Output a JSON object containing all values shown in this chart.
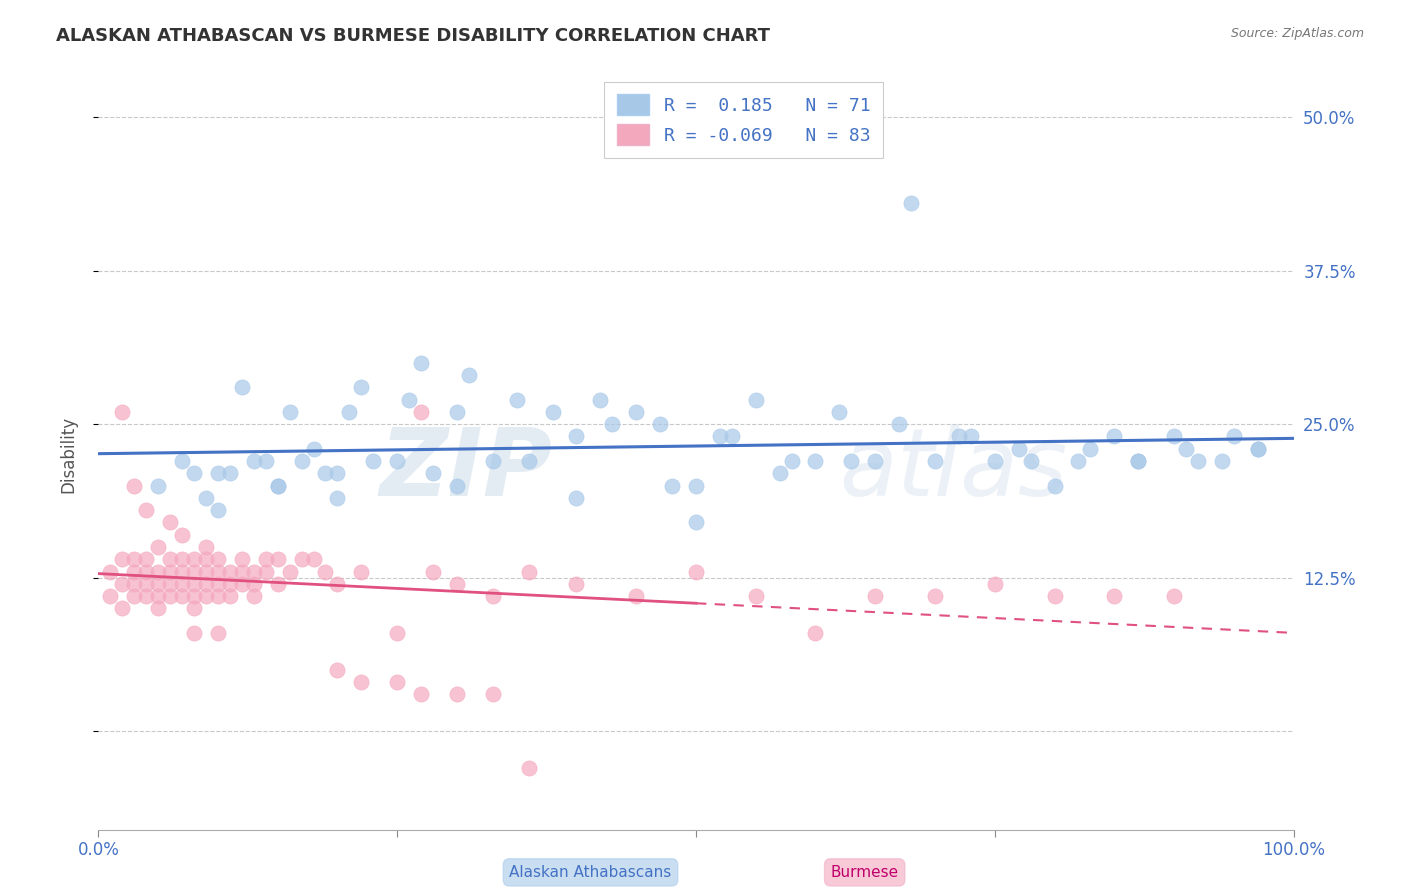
{
  "title": "ALASKAN ATHABASCAN VS BURMESE DISABILITY CORRELATION CHART",
  "source": "Source: ZipAtlas.com",
  "ylabel": "Disability",
  "xlim": [
    0.0,
    100.0
  ],
  "ylim": [
    -8.0,
    53.0
  ],
  "yticks": [
    0,
    12.5,
    25.0,
    37.5,
    50.0
  ],
  "ytick_labels": [
    "",
    "12.5%",
    "25.0%",
    "37.5%",
    "50.0%"
  ],
  "legend_r1": "R =  0.185",
  "legend_n1": "N = 71",
  "legend_r2": "R = -0.069",
  "legend_n2": "N = 83",
  "legend_label1": "Alaskan Athabascans",
  "legend_label2": "Burmese",
  "blue_color": "#a8c8e8",
  "pink_color": "#f4a8be",
  "trend_blue": "#4472c4",
  "trend_pink": "#e05080",
  "blue_scatter_x": [
    10,
    12,
    14,
    16,
    18,
    20,
    22,
    25,
    27,
    30,
    33,
    35,
    38,
    40,
    42,
    45,
    47,
    50,
    52,
    55,
    57,
    60,
    62,
    65,
    67,
    70,
    72,
    75,
    77,
    80,
    82,
    85,
    87,
    90,
    92,
    95,
    97,
    5,
    7,
    8,
    9,
    11,
    13,
    15,
    17,
    19,
    21,
    23,
    26,
    28,
    31,
    36,
    43,
    48,
    53,
    58,
    63,
    68,
    73,
    78,
    83,
    87,
    91,
    94,
    97,
    10,
    15,
    20,
    30,
    40,
    50
  ],
  "blue_scatter_y": [
    21,
    28,
    22,
    26,
    23,
    21,
    28,
    22,
    30,
    26,
    22,
    27,
    26,
    24,
    27,
    26,
    25,
    20,
    24,
    27,
    21,
    22,
    26,
    22,
    25,
    22,
    24,
    22,
    23,
    20,
    22,
    24,
    22,
    24,
    22,
    24,
    23,
    20,
    22,
    21,
    19,
    21,
    22,
    20,
    22,
    21,
    26,
    22,
    27,
    21,
    29,
    22,
    25,
    20,
    24,
    22,
    22,
    43,
    24,
    22,
    23,
    22,
    23,
    22,
    23,
    18,
    20,
    19,
    20,
    19,
    17
  ],
  "pink_scatter_x": [
    1,
    1,
    2,
    2,
    2,
    3,
    3,
    3,
    3,
    4,
    4,
    4,
    4,
    5,
    5,
    5,
    5,
    6,
    6,
    6,
    6,
    7,
    7,
    7,
    7,
    8,
    8,
    8,
    8,
    8,
    9,
    9,
    9,
    9,
    10,
    10,
    10,
    10,
    11,
    11,
    11,
    12,
    12,
    12,
    13,
    13,
    13,
    14,
    14,
    15,
    15,
    16,
    17,
    18,
    19,
    20,
    22,
    25,
    28,
    30,
    33,
    36,
    40,
    45,
    50,
    55,
    60,
    65,
    70,
    75,
    80,
    85,
    90,
    2,
    3,
    4,
    5,
    6,
    7,
    8,
    9,
    10
  ],
  "pink_scatter_y": [
    13,
    11,
    14,
    12,
    10,
    13,
    11,
    14,
    12,
    13,
    12,
    11,
    14,
    12,
    11,
    13,
    10,
    13,
    12,
    11,
    14,
    13,
    12,
    11,
    14,
    13,
    12,
    11,
    10,
    14,
    13,
    12,
    11,
    14,
    13,
    12,
    11,
    14,
    13,
    12,
    11,
    14,
    13,
    12,
    13,
    12,
    11,
    14,
    13,
    14,
    12,
    13,
    14,
    14,
    13,
    12,
    13,
    8,
    13,
    12,
    11,
    13,
    12,
    11,
    13,
    11,
    8,
    11,
    11,
    12,
    11,
    11,
    11,
    26,
    20,
    18,
    15,
    17,
    16,
    8,
    15,
    8
  ],
  "pink_extra_x": [
    20,
    22,
    25,
    27,
    30,
    33,
    36,
    27
  ],
  "pink_extra_y": [
    5,
    4,
    4,
    3,
    3,
    3,
    -3,
    26
  ]
}
